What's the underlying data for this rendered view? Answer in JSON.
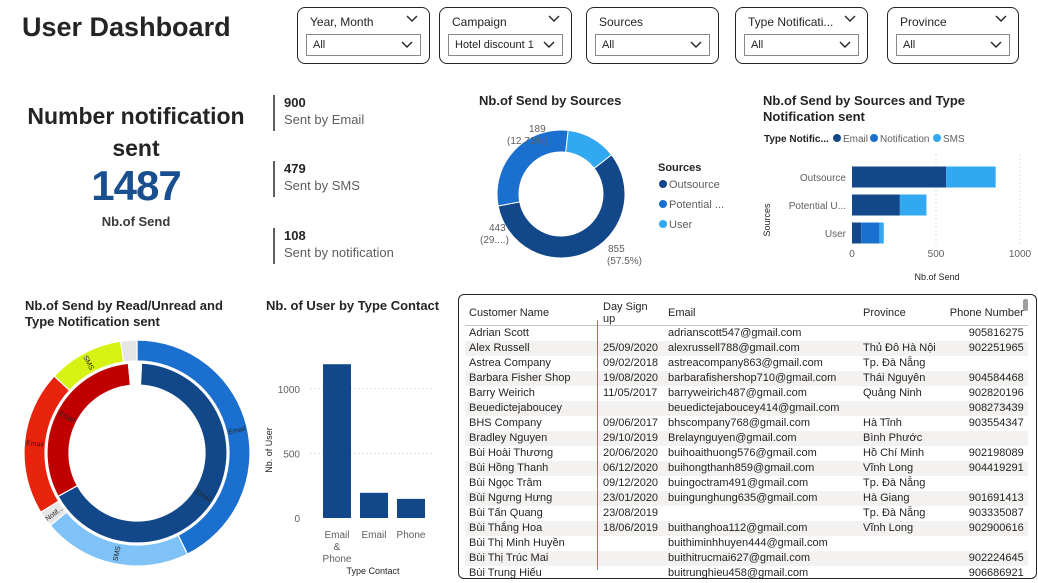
{
  "page": {
    "title": "User Dashboard"
  },
  "slicers": [
    {
      "label": "Year, Month",
      "value": "All"
    },
    {
      "label": "Campaign",
      "value": "Hotel discount 1"
    },
    {
      "label": "Sources",
      "value": "All"
    },
    {
      "label": "Type Notificati...",
      "value": "All"
    },
    {
      "label": "Province",
      "value": "All"
    }
  ],
  "kpi": {
    "title": "Number notification sent",
    "value": "1487",
    "label": "Nb.of Send"
  },
  "metric_cards": [
    {
      "value": "900",
      "label": "Sent by Email"
    },
    {
      "value": "479",
      "label": "Sent by SMS"
    },
    {
      "value": "108",
      "label": "Sent by notification"
    }
  ],
  "colors": {
    "dark_blue": "#12488a",
    "mid_blue": "#1b6fcf",
    "light_blue": "#31a8f0",
    "red_dark": "#c00000",
    "red": "#e8240c",
    "yellow_green": "#d5f212",
    "gray": "#e6e6e6",
    "pale_blue": "#7ec2f8"
  },
  "visuals": {
    "donut_sources": {
      "title": "Nb.of Send by Sources",
      "legend_title": "Sources",
      "legend": [
        "Outsource",
        "Potential ...",
        "User"
      ]
    },
    "bar_sources_type": {
      "title": "Nb.of Send by Sources and Type Notification sent",
      "legend_title": "Type Notific...",
      "legend": [
        "Email",
        "Notification",
        "SMS"
      ],
      "y_axis_title": "Sources",
      "x_axis_title": "Nb.of Send",
      "categories": [
        "Outsource",
        "Potential U...",
        "User"
      ],
      "x_ticks": [
        "0",
        "500",
        "1000"
      ]
    },
    "sunburst": {
      "title": "Nb.of Send by Read/Unread and Type Notification sent",
      "labels": [
        "SMS",
        "Email",
        "Email",
        "Email",
        "SMS",
        "Email",
        "Notif..."
      ]
    },
    "column_contact": {
      "title": "Nb. of User by Type Contact",
      "y_axis_title": "Nb. of User",
      "x_axis_title": "Type Contact",
      "y_ticks": [
        "0",
        "500",
        "1000"
      ],
      "categories": [
        "Email & Phone",
        "Email",
        "Phone"
      ]
    }
  },
  "chart_data": [
    {
      "type": "pie",
      "title": "Nb.of Send by Sources",
      "categories": [
        "Outsource",
        "Potential ...",
        "User"
      ],
      "values": [
        855,
        443,
        189
      ],
      "data_labels": [
        "855",
        "(57.5%)",
        "443",
        "(29....)",
        "189",
        "(12.71%)"
      ],
      "legend": "right"
    },
    {
      "type": "bar",
      "title": "Nb.of Send by Sources and Type Notification sent",
      "orientation": "horizontal",
      "stacked": true,
      "categories": [
        "Outsource",
        "Potential U...",
        "User"
      ],
      "series": [
        {
          "name": "Email",
          "values": [
            560,
            285,
            55
          ]
        },
        {
          "name": "Notification",
          "values": [
            0,
            0,
            108
          ]
        },
        {
          "name": "SMS",
          "values": [
            295,
            158,
            26
          ]
        }
      ],
      "xlim": [
        0,
        1000
      ],
      "xlabel": "Nb.of Send",
      "ylabel": "Sources",
      "legend": "top"
    },
    {
      "type": "pie",
      "title": "Nb.of Send by Read/Unread and Type Notification sent",
      "rings": [
        {
          "name": "inner",
          "categories": [
            "Email",
            "Email",
            "SMS"
          ],
          "values": [
            900,
            0,
            0
          ]
        },
        {
          "name": "outer",
          "categories": [
            "Email",
            "SMS",
            "Notif...",
            "Email",
            "SMS"
          ],
          "values": [
            515,
            257,
            28,
            250,
            130
          ]
        }
      ]
    },
    {
      "type": "bar",
      "title": "Nb. of User by Type Contact",
      "categories": [
        "Email & Phone",
        "Email",
        "Phone"
      ],
      "values": [
        1190,
        195,
        148
      ],
      "ylim": [
        0,
        1300
      ],
      "xlabel": "Type Contact",
      "ylabel": "Nb. of User",
      "y_ticks": [
        0,
        500,
        1000
      ]
    }
  ],
  "table": {
    "columns": [
      "Customer Name",
      "Day Sign up",
      "Email",
      "Province",
      "Phone Number"
    ],
    "rows": [
      [
        "Adrian Scott",
        "",
        "adrianscott547@gmail.com",
        "",
        "905816275"
      ],
      [
        "Alex Russell",
        "25/09/2020",
        "alexrussell788@gmail.com",
        "Thủ Đô Hà Nội",
        "902251965"
      ],
      [
        "Astrea Company",
        "09/02/2018",
        "astreacompany863@gmail.com",
        "Tp. Đà Nẵng",
        ""
      ],
      [
        "Barbara Fisher Shop",
        "19/08/2020",
        "barbarafishershop710@gmail.com",
        "Thái Nguyên",
        "904584468"
      ],
      [
        "Barry Weirich",
        "11/05/2017",
        "barryweirich487@gmail.com",
        "Quảng Ninh",
        "902820196"
      ],
      [
        "Beuedictejaboucey",
        "",
        "beuedictejaboucey414@gmail.com",
        "",
        "908273439"
      ],
      [
        "BHS Company",
        "09/06/2017",
        "bhscompany768@gmail.com",
        "Hà Tĩnh",
        "903554347"
      ],
      [
        "Bradley Nguyen",
        "29/10/2019",
        "Brelaynguyen@gmail.com",
        "Bình Phước",
        ""
      ],
      [
        "Bùi Hoài Thương",
        "20/06/2020",
        "buihoaithuong576@gmail.com",
        "Hồ Chí Minh",
        "902198089"
      ],
      [
        "Bùi Hồng Thanh",
        "06/12/2020",
        "buihongthanh859@gmail.com",
        "Vĩnh Long",
        "904419291"
      ],
      [
        "Bùi Ngọc Trâm",
        "09/12/2020",
        "buingoctram491@gmail.com",
        "Tp. Đà Nẵng",
        ""
      ],
      [
        "Bùi Ngưng Hưng",
        "23/01/2020",
        "buingunghung635@gmail.com",
        "Hà Giang",
        "901691413"
      ],
      [
        "Bùi Tấn Quang",
        "23/08/2019",
        "",
        "Tp. Đà Nẵng",
        "903335087"
      ],
      [
        "Bùi Thắng Hoa",
        "18/06/2019",
        "buithanghoa112@gmail.com",
        "Vĩnh Long",
        "902900616"
      ],
      [
        "Bùi Thị Minh Huyền",
        "",
        "buithiminhhuyen444@gmail.com",
        "",
        ""
      ],
      [
        "Bùi Thị Trúc Mai",
        "",
        "buithitrucmai627@gmail.com",
        "",
        "902224645"
      ],
      [
        "Bùi Trung Hiếu",
        "",
        "buitrunghieu458@gmail.com",
        "",
        "906686921"
      ]
    ]
  }
}
